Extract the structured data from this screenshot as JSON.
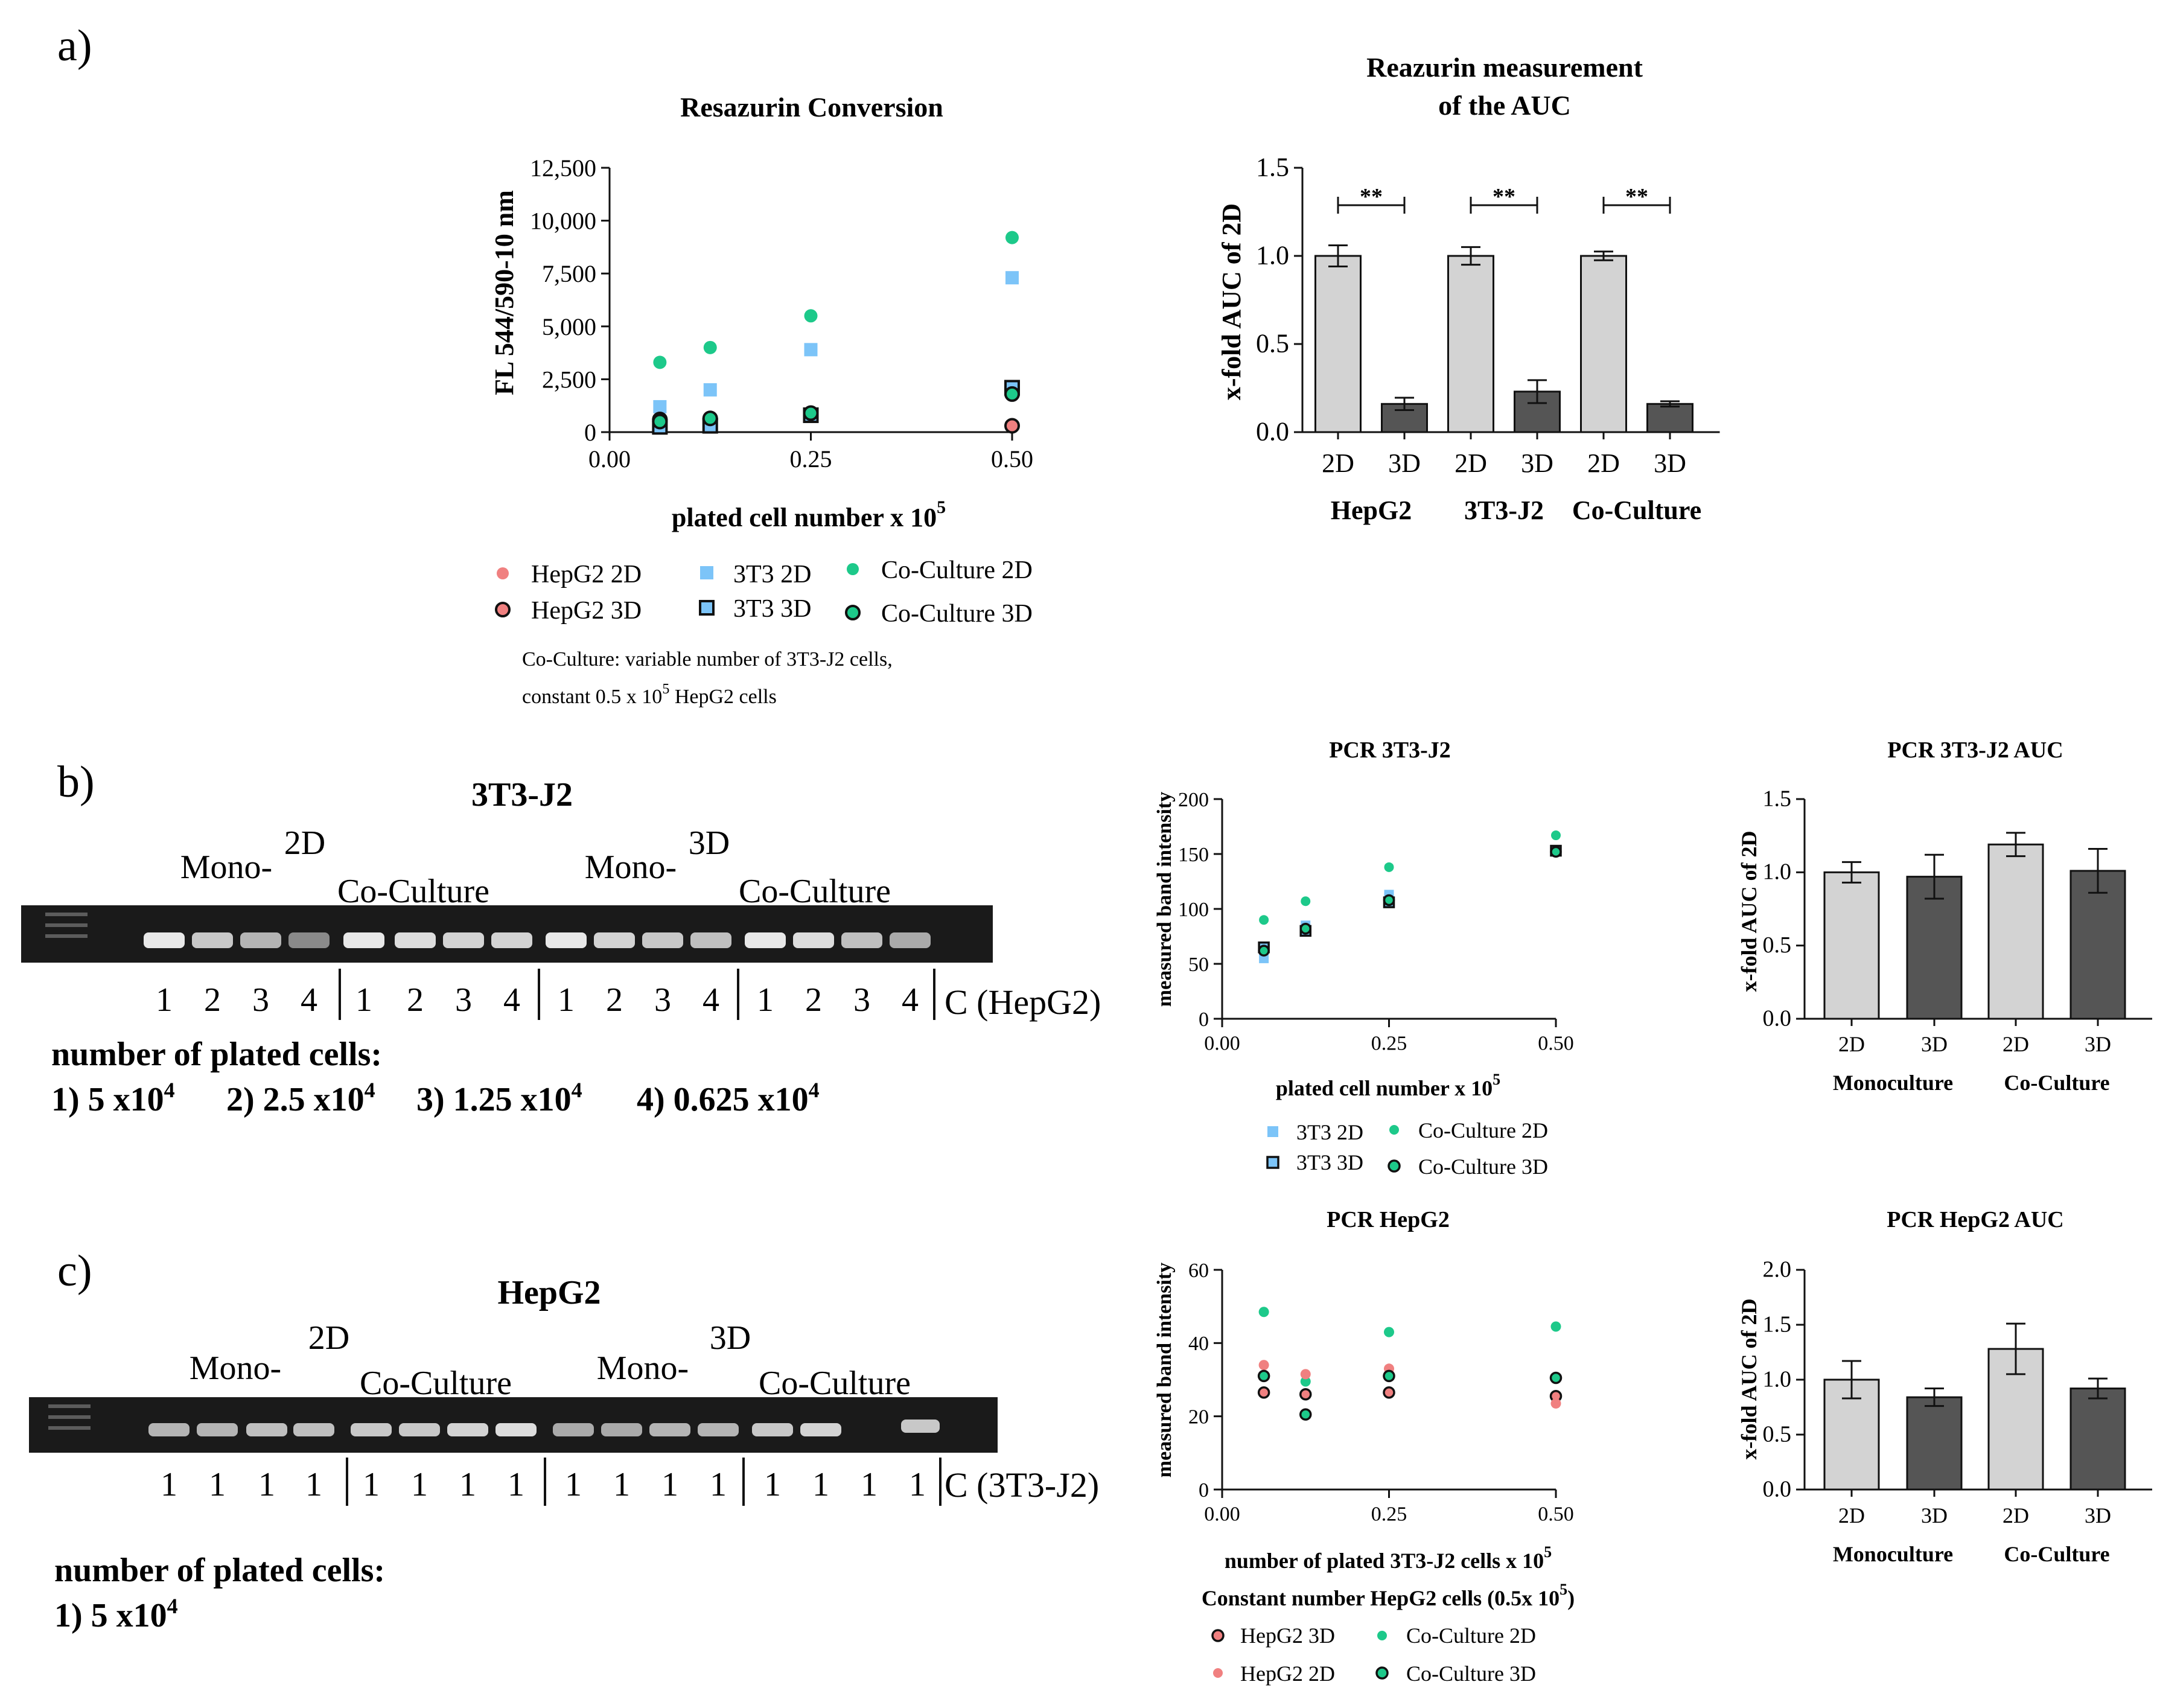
{
  "panels": {
    "a": "a)",
    "b": "b)",
    "c": "c)"
  },
  "colors": {
    "hepg2": "#f08080",
    "t3": "#7cc4f8",
    "coculture": "#1dc98a",
    "bar_2d": "#d3d3d3",
    "bar_3d": "#555555",
    "gel_bg": "#1a1a1a",
    "gel_band": "#e8e8e8"
  },
  "legend_a": {
    "items": [
      "HepG2 2D",
      "3T3 2D",
      "Co-Culture 2D",
      "HepG2 3D",
      "3T3 3D",
      "Co-Culture 3D"
    ],
    "note_line1": "Co-Culture: variable number of 3T3-J2 cells,",
    "note_line2_pre": "constant 0.5 x 10",
    "note_line2_sup": "5",
    "note_line2_post": " HepG2 cells"
  },
  "gel_b": {
    "title": "3T3-J2",
    "label_2d": "2D",
    "label_3d": "3D",
    "mono": "Mono-",
    "co": "Co-Culture",
    "lanes": [
      "1",
      "2",
      "3",
      "4",
      "1",
      "2",
      "3",
      "4",
      "1",
      "2",
      "3",
      "4",
      "1",
      "2",
      "3",
      "4"
    ],
    "control": "C (HepG2)",
    "plated_title": "number of plated cells:",
    "plated_items": [
      {
        "pre": "1) 5 x10",
        "sup": "4"
      },
      {
        "pre": "2) 2.5 x10",
        "sup": "4"
      },
      {
        "pre": "3) 1.25 x10",
        "sup": "4"
      },
      {
        "pre": "4) 0.625 x10",
        "sup": "4"
      }
    ]
  },
  "gel_c": {
    "title": "HepG2",
    "label_2d": "2D",
    "label_3d": "3D",
    "mono": "Mono-",
    "co": "Co-Culture",
    "lanes": [
      "1",
      "1",
      "1",
      "1",
      "1",
      "1",
      "1",
      "1",
      "1",
      "1",
      "1",
      "1",
      "1",
      "1",
      "1",
      "1"
    ],
    "control": "C (3T3-J2)",
    "plated_title": "number of plated cells:",
    "plated_items": [
      {
        "pre": "1) 5 x10",
        "sup": "4"
      }
    ]
  },
  "legend_b": {
    "items": [
      "3T3 2D",
      "Co-Culture 2D",
      "3T3 3D",
      "Co-Culture 3D"
    ]
  },
  "legend_c": {
    "items": [
      "HepG2 3D",
      "Co-Culture 2D",
      "HepG2 2D",
      "Co-Culture 3D"
    ]
  },
  "chart_data": [
    {
      "id": "a_scatter",
      "type": "scatter",
      "title": "Resazurin Conversion",
      "xlabel": "plated cell number x 10",
      "xlabel_sup": "5",
      "ylabel": "FL 544/590-10 nm",
      "xlim": [
        0,
        0.5
      ],
      "ylim": [
        0,
        12500
      ],
      "xticks": [
        "0.00",
        "0.25",
        "0.50"
      ],
      "yticks": [
        "0",
        "2,500",
        "5,000",
        "7,500",
        "10,000",
        "12,500"
      ],
      "x": [
        0.0625,
        0.125,
        0.25,
        0.5
      ],
      "series": [
        {
          "name": "HepG2 2D",
          "marker": "circle",
          "filled": true,
          "values": [
            null,
            null,
            null,
            350
          ]
        },
        {
          "name": "3T3 2D",
          "marker": "square",
          "filled": true,
          "values": [
            1200,
            2000,
            3900,
            7300
          ]
        },
        {
          "name": "Co-Culture 2D",
          "marker": "circle",
          "filled": true,
          "values": [
            3300,
            4000,
            5500,
            9200
          ]
        },
        {
          "name": "HepG2 3D",
          "marker": "circle",
          "filled": false,
          "values": [
            600,
            600,
            null,
            300
          ]
        },
        {
          "name": "3T3 3D",
          "marker": "square",
          "filled": false,
          "values": [
            250,
            300,
            800,
            2100
          ]
        },
        {
          "name": "Co-Culture 3D",
          "marker": "circle",
          "filled": false,
          "values": [
            500,
            650,
            900,
            1800
          ]
        }
      ]
    },
    {
      "id": "a_bar",
      "type": "bar",
      "title_line1": "Reazurin measurement",
      "title_line2": "of the AUC",
      "ylabel": "x-fold AUC of 2D",
      "ylim": [
        0,
        1.5
      ],
      "yticks": [
        "0.0",
        "0.5",
        "1.0",
        "1.5"
      ],
      "categories": [
        "2D",
        "3D",
        "2D",
        "3D",
        "2D",
        "3D"
      ],
      "groups": [
        "HepG2",
        "3T3-J2",
        "Co-Culture"
      ],
      "values": [
        1.0,
        0.16,
        1.0,
        0.23,
        1.0,
        0.16
      ],
      "errors": [
        0.06,
        0.035,
        0.05,
        0.065,
        0.025,
        0.015
      ],
      "significance": [
        "**",
        "**",
        "**"
      ]
    },
    {
      "id": "b_scatter",
      "type": "scatter",
      "title": "PCR 3T3-J2",
      "xlabel": "plated cell number x 10",
      "xlabel_sup": "5",
      "ylabel": "measured band intensity",
      "xlim": [
        0,
        0.5
      ],
      "ylim": [
        0,
        200
      ],
      "xticks": [
        "0.00",
        "0.25",
        "0.50"
      ],
      "yticks": [
        "0",
        "50",
        "100",
        "150",
        "200"
      ],
      "x": [
        0.0625,
        0.125,
        0.25,
        0.5
      ],
      "series": [
        {
          "name": "3T3 2D",
          "marker": "square",
          "filled": true,
          "values": [
            55,
            85,
            113,
            152
          ]
        },
        {
          "name": "Co-Culture 2D",
          "marker": "circle",
          "filled": true,
          "values": [
            90,
            107,
            138,
            167
          ]
        },
        {
          "name": "3T3 3D",
          "marker": "square",
          "filled": false,
          "values": [
            65,
            80,
            106,
            153
          ]
        },
        {
          "name": "Co-Culture 3D",
          "marker": "circle",
          "filled": false,
          "values": [
            62,
            82,
            108,
            152
          ]
        }
      ]
    },
    {
      "id": "b_bar",
      "type": "bar",
      "title": "PCR 3T3-J2 AUC",
      "ylabel": "x-fold AUC of 2D",
      "ylim": [
        0,
        1.5
      ],
      "yticks": [
        "0.0",
        "0.5",
        "1.0",
        "1.5"
      ],
      "categories": [
        "2D",
        "3D",
        "2D",
        "3D"
      ],
      "groups": [
        "Monoculture",
        "Co-Culture"
      ],
      "values": [
        1.0,
        0.97,
        1.19,
        1.01
      ],
      "errors": [
        0.07,
        0.15,
        0.08,
        0.15
      ]
    },
    {
      "id": "c_scatter",
      "type": "scatter",
      "title": "PCR HepG2",
      "xlabel": "number of plated 3T3-J2 cells x 10",
      "xlabel_sup": "5",
      "xlabel2": "Constant number HepG2 cells (0.5x 10",
      "xlabel2_sup": "5",
      "xlabel2_post": ")",
      "ylabel": "measured band intensity",
      "xlim": [
        0,
        0.5
      ],
      "ylim": [
        0,
        60
      ],
      "xticks": [
        "0.00",
        "0.25",
        "0.50"
      ],
      "yticks": [
        "0",
        "20",
        "40",
        "60"
      ],
      "x": [
        0.0625,
        0.125,
        0.25,
        0.5
      ],
      "series": [
        {
          "name": "HepG2 3D",
          "marker": "circle",
          "filled": false,
          "hollow_color": "hepg2",
          "values": [
            26.5,
            26,
            26.5,
            25.5
          ]
        },
        {
          "name": "Co-Culture 2D",
          "marker": "circle",
          "filled": true,
          "values": [
            48.5,
            29.5,
            43,
            44.5
          ]
        },
        {
          "name": "HepG2 2D",
          "marker": "circle",
          "filled": true,
          "values": [
            34,
            31.5,
            33,
            23.5
          ]
        },
        {
          "name": "Co-Culture 3D",
          "marker": "circle",
          "filled": false,
          "values": [
            31,
            20.5,
            31,
            30.5
          ]
        }
      ]
    },
    {
      "id": "c_bar",
      "type": "bar",
      "title": "PCR HepG2 AUC",
      "ylabel": "x-fold AUC of 2D",
      "ylim": [
        0,
        2.0
      ],
      "yticks": [
        "0.0",
        "0.5",
        "1.0",
        "1.5",
        "2.0"
      ],
      "categories": [
        "2D",
        "3D",
        "2D",
        "3D"
      ],
      "groups": [
        "Monoculture",
        "Co-Culture"
      ],
      "values": [
        1.0,
        0.84,
        1.28,
        0.92
      ],
      "errors": [
        0.17,
        0.08,
        0.23,
        0.09
      ]
    }
  ]
}
